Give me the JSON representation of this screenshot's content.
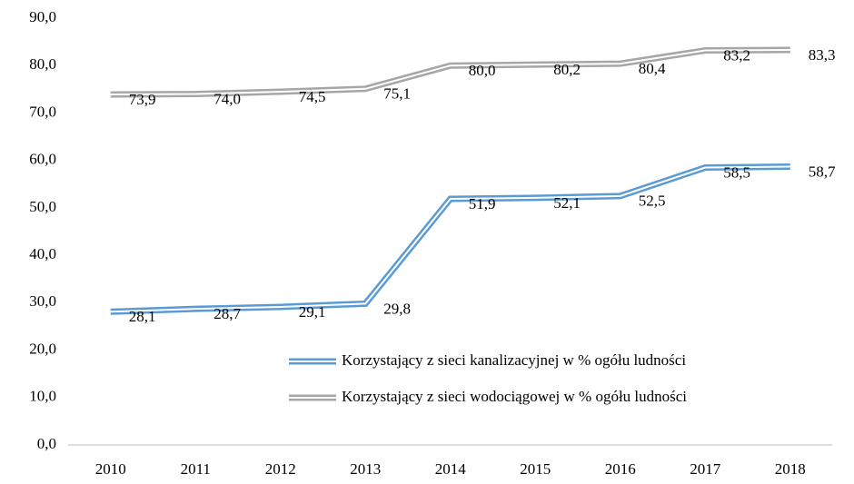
{
  "chart_data": {
    "type": "line",
    "categories": [
      "2010",
      "2011",
      "2012",
      "2013",
      "2014",
      "2015",
      "2016",
      "2017",
      "2018"
    ],
    "series": [
      {
        "name": "Korzystający z sieci kanalizacyjnej w % ogółu ludności",
        "color": "#5b9bd5",
        "values": [
          28.1,
          28.7,
          29.1,
          29.8,
          51.9,
          52.1,
          52.5,
          58.5,
          58.7
        ],
        "value_labels": [
          "28,1",
          "28,7",
          "29,1",
          "29,8",
          "51,9",
          "52,1",
          "52,5",
          "58,5",
          "58,7"
        ]
      },
      {
        "name": "Korzystający z sieci wodociągowej w % ogółu ludności",
        "color": "#a6a6a6",
        "values": [
          73.9,
          74.0,
          74.5,
          75.1,
          80.0,
          80.2,
          80.4,
          83.2,
          83.3
        ],
        "value_labels": [
          "73,9",
          "74,0",
          "74,5",
          "75,1",
          "80,0",
          "80,2",
          "80,4",
          "83,2",
          "83,3"
        ]
      }
    ],
    "ylim": [
      0,
      90
    ],
    "yticks": [
      {
        "value": 0,
        "label": "0,0"
      },
      {
        "value": 10,
        "label": "10,0"
      },
      {
        "value": 20,
        "label": "20,0"
      },
      {
        "value": 30,
        "label": "30,0"
      },
      {
        "value": 40,
        "label": "40,0"
      },
      {
        "value": 50,
        "label": "50,0"
      },
      {
        "value": 60,
        "label": "60,0"
      },
      {
        "value": 70,
        "label": "70,0"
      },
      {
        "value": 80,
        "label": "80,0"
      },
      {
        "value": 90,
        "label": "90,0"
      }
    ],
    "grid": false,
    "legend": "lower right"
  }
}
